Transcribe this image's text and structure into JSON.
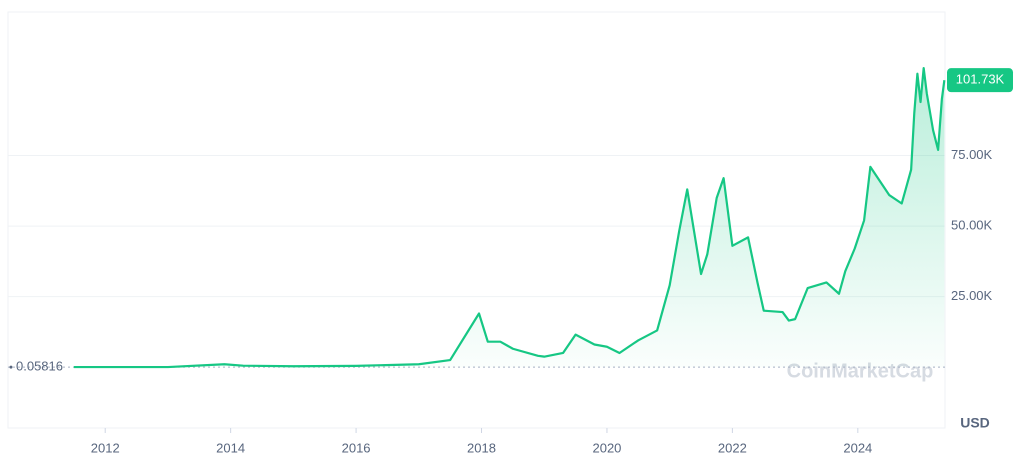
{
  "chart_data": {
    "type": "line",
    "x": [
      2011.5,
      2012.0,
      2013.0,
      2013.9,
      2014.2,
      2015.0,
      2016.0,
      2017.0,
      2017.5,
      2017.96,
      2018.1,
      2018.3,
      2018.5,
      2018.9,
      2019.0,
      2019.3,
      2019.5,
      2019.8,
      2020.0,
      2020.2,
      2020.5,
      2020.8,
      2021.0,
      2021.15,
      2021.28,
      2021.5,
      2021.6,
      2021.75,
      2021.86,
      2022.0,
      2022.25,
      2022.4,
      2022.5,
      2022.8,
      2022.9,
      2023.0,
      2023.2,
      2023.5,
      2023.7,
      2023.8,
      2023.95,
      2024.1,
      2024.2,
      2024.5,
      2024.7,
      2024.85,
      2024.9,
      2024.95,
      2025.0,
      2025.05,
      2025.1,
      2025.2,
      2025.28,
      2025.34,
      2025.38
    ],
    "values": [
      0.05816,
      5,
      13,
      1000,
      500,
      300,
      430,
      1000,
      2500,
      19000,
      9000,
      9000,
      6500,
      4000,
      3700,
      5000,
      11500,
      8000,
      7200,
      5000,
      9500,
      13000,
      29000,
      48000,
      63000,
      33000,
      40000,
      60000,
      67000,
      43000,
      46000,
      30000,
      20000,
      19500,
      16500,
      17000,
      28000,
      30000,
      26000,
      34000,
      42000,
      52000,
      71000,
      61000,
      58000,
      70000,
      90000,
      104000,
      94000,
      106000,
      97000,
      84000,
      77000,
      95000,
      101730
    ],
    "color": "#16c784",
    "last_label": "101.73K",
    "xlim": [
      2010.45,
      2025.39
    ],
    "xticks": [
      2012,
      2014,
      2016,
      2018,
      2020,
      2022,
      2024
    ],
    "ylim": [
      -21600,
      125900
    ],
    "yticks": [
      {
        "value": 25000,
        "label": "25.00K"
      },
      {
        "value": 50000,
        "label": "50.00K"
      },
      {
        "value": 75000,
        "label": "75.00K"
      }
    ],
    "grid": true,
    "y_unit": "USD",
    "watermark": "CoinMarketCap"
  }
}
